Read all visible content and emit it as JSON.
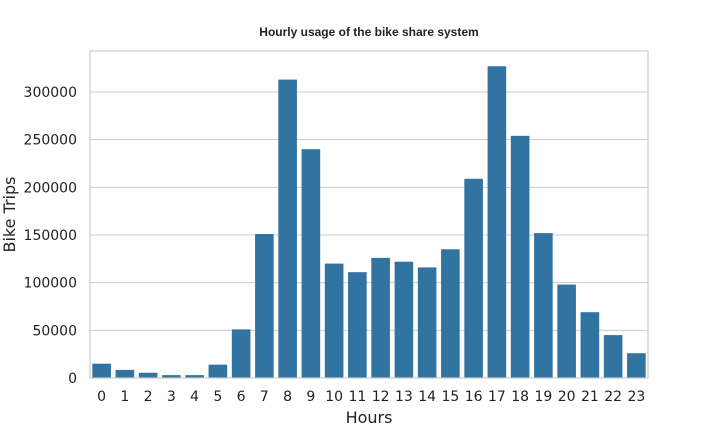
{
  "chart_data": {
    "type": "bar",
    "title": "Hourly usage of the bike share system",
    "xlabel": "Hours",
    "ylabel": "Bike Trips",
    "categories": [
      "0",
      "1",
      "2",
      "3",
      "4",
      "5",
      "6",
      "7",
      "8",
      "9",
      "10",
      "11",
      "12",
      "13",
      "14",
      "15",
      "16",
      "17",
      "18",
      "19",
      "20",
      "21",
      "22",
      "23"
    ],
    "values": [
      15000,
      8500,
      5500,
      3000,
      3000,
      14000,
      51000,
      151000,
      313000,
      240000,
      120000,
      111000,
      126000,
      122000,
      116000,
      135000,
      209000,
      327000,
      254000,
      152000,
      98000,
      69000,
      45000,
      26000
    ],
    "ylim": [
      0,
      343000
    ],
    "yticks": [
      "0",
      "50000",
      "100000",
      "150000",
      "200000",
      "250000",
      "300000"
    ],
    "grid": "horizontal",
    "bar_color": "#3274a1"
  }
}
